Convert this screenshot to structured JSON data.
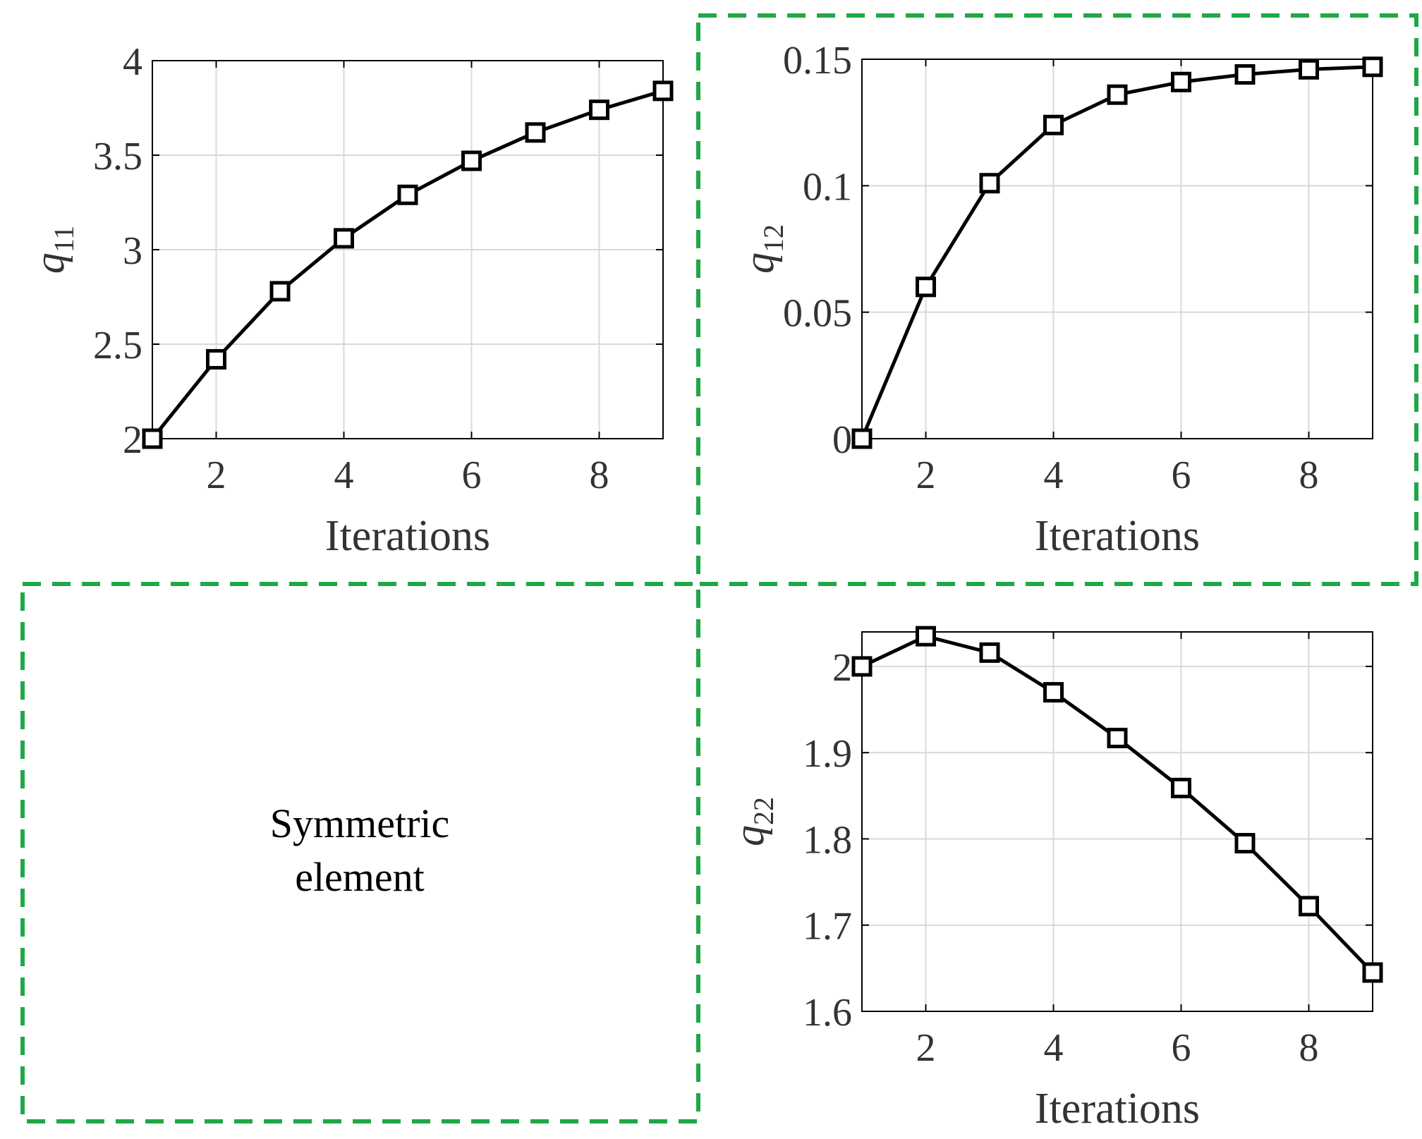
{
  "figure": {
    "symmetric_label_line1": "Symmetric",
    "symmetric_label_line2": "element",
    "box_color": "#1fa846",
    "line_color": "#000000",
    "grid_color": "#d9d9d9"
  },
  "chart_data": [
    {
      "id": "q11",
      "type": "line",
      "title": "",
      "xlabel": "Iterations",
      "ylabel": "q",
      "ylabel_sub": "11",
      "x": [
        1,
        2,
        3,
        4,
        5,
        6,
        7,
        8,
        9
      ],
      "series": [
        {
          "name": "q11",
          "values": [
            2.0,
            2.42,
            2.78,
            3.06,
            3.29,
            3.47,
            3.62,
            3.74,
            3.84
          ],
          "marker": "square"
        }
      ],
      "xlim": [
        1,
        9
      ],
      "ylim": [
        2,
        4
      ],
      "xticks": [
        2,
        4,
        6,
        8
      ],
      "xtick_labels": [
        "2",
        "4",
        "6",
        "8"
      ],
      "yticks": [
        2,
        2.5,
        3,
        3.5,
        4
      ],
      "ytick_labels": [
        "2",
        "2.5",
        "3",
        "3.5",
        "4"
      ],
      "grid": true
    },
    {
      "id": "q12",
      "type": "line",
      "title": "",
      "xlabel": "Iterations",
      "ylabel": "q",
      "ylabel_sub": "12",
      "x": [
        1,
        2,
        3,
        4,
        5,
        6,
        7,
        8,
        9
      ],
      "series": [
        {
          "name": "q12",
          "values": [
            0.0,
            0.06,
            0.101,
            0.124,
            0.136,
            0.141,
            0.144,
            0.146,
            0.147
          ],
          "marker": "square"
        }
      ],
      "xlim": [
        1,
        9
      ],
      "ylim": [
        0,
        0.15
      ],
      "xticks": [
        2,
        4,
        6,
        8
      ],
      "xtick_labels": [
        "2",
        "4",
        "6",
        "8"
      ],
      "yticks": [
        0,
        0.05,
        0.1,
        0.15
      ],
      "ytick_labels": [
        "0",
        "0.05",
        "0.1",
        "0.15"
      ],
      "grid": true
    },
    {
      "id": "q22",
      "type": "line",
      "title": "",
      "xlabel": "Iterations",
      "ylabel": "q",
      "ylabel_sub": "22",
      "x": [
        1,
        2,
        3,
        4,
        5,
        6,
        7,
        8,
        9
      ],
      "series": [
        {
          "name": "q22",
          "values": [
            2.0,
            2.035,
            2.016,
            1.97,
            1.917,
            1.859,
            1.795,
            1.722,
            1.645
          ],
          "marker": "square"
        }
      ],
      "xlim": [
        1,
        9
      ],
      "ylim": [
        1.6,
        2.04
      ],
      "xticks": [
        2,
        4,
        6,
        8
      ],
      "xtick_labels": [
        "2",
        "4",
        "6",
        "8"
      ],
      "yticks": [
        1.6,
        1.7,
        1.8,
        1.9,
        2
      ],
      "ytick_labels": [
        "1.6",
        "1.7",
        "1.8",
        "1.9",
        "2"
      ],
      "grid": true
    }
  ]
}
